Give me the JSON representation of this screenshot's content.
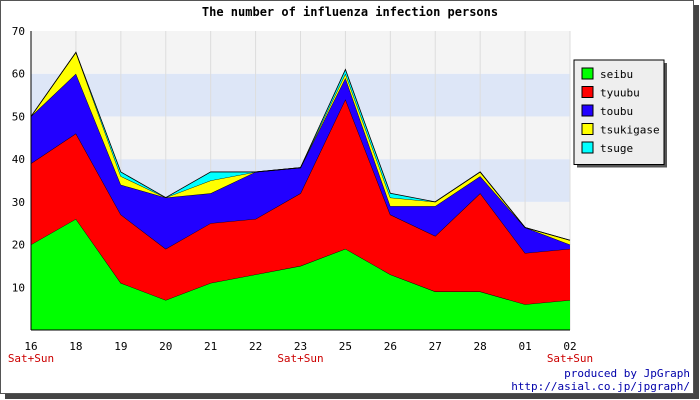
{
  "chart_data": {
    "type": "area",
    "stacked": true,
    "title": "The number of influenza infection persons",
    "categories": [
      "16",
      "18",
      "19",
      "20",
      "21",
      "22",
      "23",
      "25",
      "26",
      "27",
      "28",
      "01",
      "02"
    ],
    "sub_labels": [
      "Sat+Sun",
      "",
      "",
      "",
      "",
      "",
      "Sat+Sun",
      "",
      "",
      "",
      "",
      "",
      "Sat+Sun"
    ],
    "ylim": [
      0,
      70
    ],
    "yticks": [
      10,
      20,
      30,
      40,
      50,
      60,
      70
    ],
    "grid": true,
    "legend_position": "right",
    "series": [
      {
        "name": "seibu",
        "color": "#00ff00",
        "values": [
          20,
          26,
          11,
          7,
          11,
          13,
          15,
          19,
          13,
          9,
          9,
          6,
          7
        ]
      },
      {
        "name": "tyuubu",
        "color": "#ff0000",
        "values": [
          19,
          20,
          16,
          12,
          14,
          13,
          17,
          35,
          14,
          13,
          23,
          12,
          12
        ]
      },
      {
        "name": "toubu",
        "color": "#2200ff",
        "values": [
          11,
          14,
          7,
          12,
          7,
          11,
          6,
          5,
          2,
          7,
          4,
          6,
          1
        ]
      },
      {
        "name": "tsukigase",
        "color": "#ffff00",
        "values": [
          0,
          5,
          2,
          0,
          3,
          0,
          0,
          1,
          2,
          1,
          1,
          0,
          1
        ]
      },
      {
        "name": "tsuge",
        "color": "#00ffff",
        "values": [
          0,
          0,
          1,
          0,
          2,
          0,
          0,
          1,
          1,
          0,
          0,
          0,
          0
        ]
      }
    ]
  },
  "credit": {
    "line1": "produced by JpGraph",
    "line2": "http://asial.co.jp/jpgraph/"
  },
  "colors": {
    "band_light": "#f4f4f4",
    "band_blue": "#dde6f7",
    "grid": "#dddddd"
  }
}
